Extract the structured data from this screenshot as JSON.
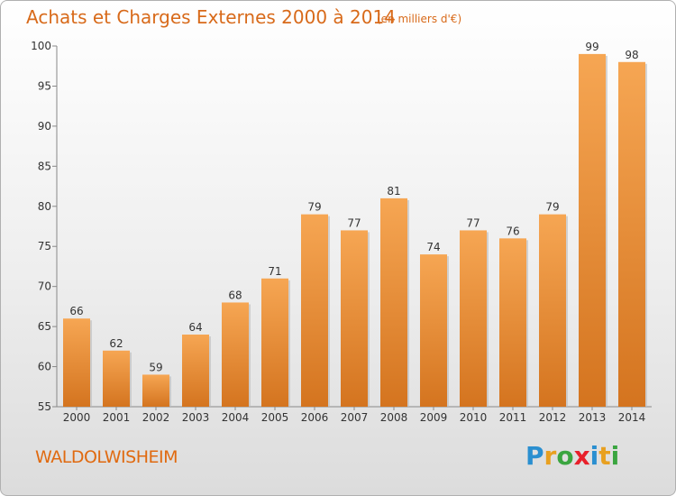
{
  "title": "Achats et Charges Externes 2000 à 2014",
  "subtitle": "(en milliers d'€)",
  "commune": "WALDOLWISHEIM",
  "logo": {
    "text": "Proxiti",
    "colors": [
      "#2a8fd0",
      "#e8a020",
      "#3aa540",
      "#e8202a",
      "#2a8fd0",
      "#e8a020",
      "#3aa540"
    ]
  },
  "colors": {
    "bar_top": "#f6a653",
    "bar_bottom": "#d4741f",
    "title": "#d86a1a"
  },
  "chart_data": {
    "type": "bar",
    "categories": [
      "2000",
      "2001",
      "2002",
      "2003",
      "2004",
      "2005",
      "2006",
      "2007",
      "2008",
      "2009",
      "2010",
      "2011",
      "2012",
      "2013",
      "2014"
    ],
    "values": [
      66,
      62,
      59,
      64,
      68,
      71,
      79,
      77,
      81,
      74,
      77,
      76,
      79,
      99,
      98
    ],
    "ylim": [
      55,
      100
    ],
    "yticks": [
      55,
      60,
      65,
      70,
      75,
      80,
      85,
      90,
      95,
      100
    ],
    "grid": false
  }
}
